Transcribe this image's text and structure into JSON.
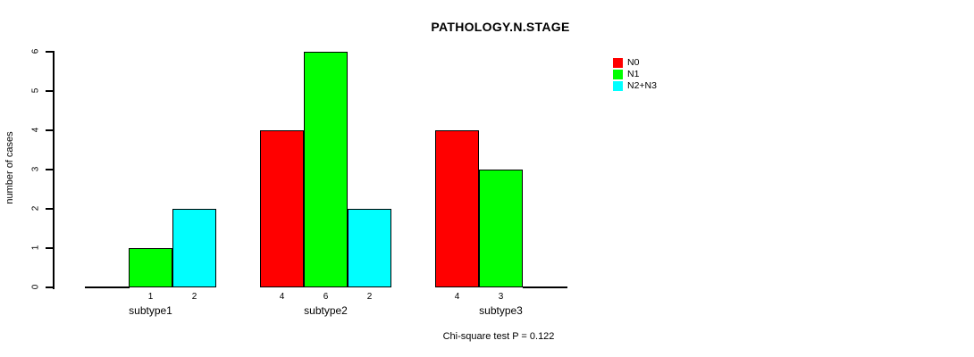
{
  "title": "PATHOLOGY.N.STAGE",
  "chart_data": {
    "type": "bar",
    "categories": [
      "subtype1",
      "subtype2",
      "subtype3"
    ],
    "series": [
      {
        "name": "N0",
        "color": "#FF0000",
        "values": [
          0,
          4,
          4
        ]
      },
      {
        "name": "N1",
        "color": "#00FF00",
        "values": [
          1,
          6,
          3
        ]
      },
      {
        "name": "N2+N3",
        "color": "#00FFFF",
        "values": [
          2,
          2,
          0
        ]
      }
    ],
    "bar_value_labels": [
      [
        "",
        "1",
        "2"
      ],
      [
        "4",
        "6",
        "2"
      ],
      [
        "4",
        "3",
        ""
      ]
    ],
    "title": "PATHOLOGY.N.STAGE",
    "xlabel": "",
    "ylabel": "number of cases",
    "ylim": [
      0,
      6
    ],
    "yticks": [
      0,
      1,
      2,
      3,
      4,
      5,
      6
    ],
    "grid": false,
    "legend_position": "right",
    "legend_entries": [
      "N0",
      "N1",
      "N2+N3"
    ]
  },
  "footer": {
    "stat_text": "Chi-square test P = 0.122"
  }
}
